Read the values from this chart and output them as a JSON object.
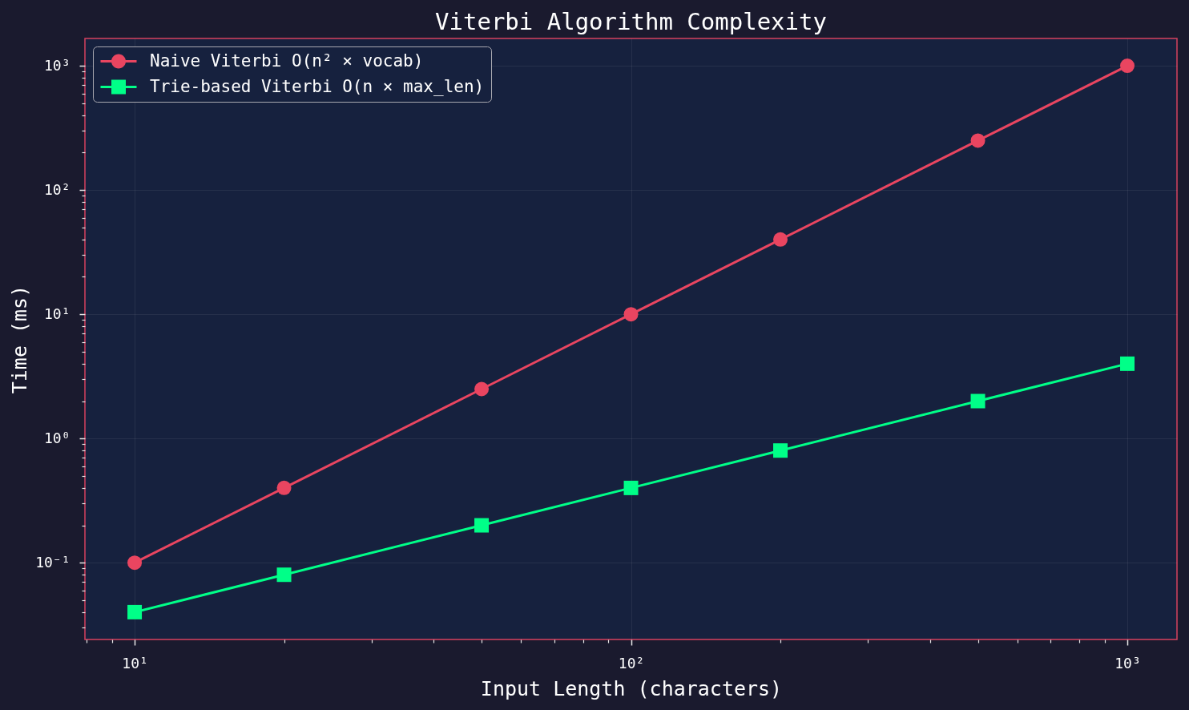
{
  "chart_data": {
    "type": "line",
    "title": "Viterbi Algorithm Complexity",
    "xlabel": "Input Length (characters)",
    "ylabel": "Time (ms)",
    "x": [
      10,
      20,
      50,
      100,
      200,
      500,
      1000
    ],
    "series": [
      {
        "name": "Naive Viterbi O(n² × vocab)",
        "color": "#e94560",
        "marker": "circle",
        "values": [
          0.1,
          0.4,
          2.5,
          10,
          40,
          250,
          1000
        ]
      },
      {
        "name": "Trie-based Viterbi O(n × max_len)",
        "color": "#00ff88",
        "marker": "square",
        "values": [
          0.04,
          0.08,
          0.2,
          0.4,
          0.8,
          2,
          4
        ]
      }
    ],
    "log": "xy",
    "xlim": [
      7.94,
      1259
    ],
    "ylim": [
      0.0241,
      1660
    ],
    "xticks": [
      {
        "value": 8,
        "label": null
      },
      {
        "value": 9,
        "label": null
      },
      {
        "value": 10,
        "label": "10¹"
      },
      {
        "value": 20,
        "label": null
      },
      {
        "value": 30,
        "label": null
      },
      {
        "value": 40,
        "label": null
      },
      {
        "value": 50,
        "label": null
      },
      {
        "value": 60,
        "label": null
      },
      {
        "value": 70,
        "label": null
      },
      {
        "value": 80,
        "label": null
      },
      {
        "value": 90,
        "label": null
      },
      {
        "value": 100,
        "label": "10²"
      },
      {
        "value": 200,
        "label": null
      },
      {
        "value": 300,
        "label": null
      },
      {
        "value": 400,
        "label": null
      },
      {
        "value": 500,
        "label": null
      },
      {
        "value": 600,
        "label": null
      },
      {
        "value": 700,
        "label": null
      },
      {
        "value": 800,
        "label": null
      },
      {
        "value": 900,
        "label": null
      },
      {
        "value": 1000,
        "label": "10³"
      }
    ],
    "yticks": [
      {
        "value": 0.03,
        "label": null
      },
      {
        "value": 0.04,
        "label": null
      },
      {
        "value": 0.05,
        "label": null
      },
      {
        "value": 0.06,
        "label": null
      },
      {
        "value": 0.07,
        "label": null
      },
      {
        "value": 0.08,
        "label": null
      },
      {
        "value": 0.09,
        "label": null
      },
      {
        "value": 0.1,
        "label": "10⁻¹"
      },
      {
        "value": 0.2,
        "label": null
      },
      {
        "value": 0.3,
        "label": null
      },
      {
        "value": 0.4,
        "label": null
      },
      {
        "value": 0.5,
        "label": null
      },
      {
        "value": 0.6,
        "label": null
      },
      {
        "value": 0.7,
        "label": null
      },
      {
        "value": 0.8,
        "label": null
      },
      {
        "value": 0.9,
        "label": null
      },
      {
        "value": 1,
        "label": "10⁰"
      },
      {
        "value": 2,
        "label": null
      },
      {
        "value": 3,
        "label": null
      },
      {
        "value": 4,
        "label": null
      },
      {
        "value": 5,
        "label": null
      },
      {
        "value": 6,
        "label": null
      },
      {
        "value": 7,
        "label": null
      },
      {
        "value": 8,
        "label": null
      },
      {
        "value": 9,
        "label": null
      },
      {
        "value": 10,
        "label": "10¹"
      },
      {
        "value": 20,
        "label": null
      },
      {
        "value": 30,
        "label": null
      },
      {
        "value": 40,
        "label": null
      },
      {
        "value": 50,
        "label": null
      },
      {
        "value": 60,
        "label": null
      },
      {
        "value": 70,
        "label": null
      },
      {
        "value": 80,
        "label": null
      },
      {
        "value": 90,
        "label": null
      },
      {
        "value": 100,
        "label": "10²"
      },
      {
        "value": 200,
        "label": null
      },
      {
        "value": 300,
        "label": null
      },
      {
        "value": 400,
        "label": null
      },
      {
        "value": 500,
        "label": null
      },
      {
        "value": 600,
        "label": null
      },
      {
        "value": 700,
        "label": null
      },
      {
        "value": 800,
        "label": null
      },
      {
        "value": 900,
        "label": null
      },
      {
        "value": 1000,
        "label": "10³"
      }
    ],
    "grid": true,
    "legend": "top left"
  }
}
